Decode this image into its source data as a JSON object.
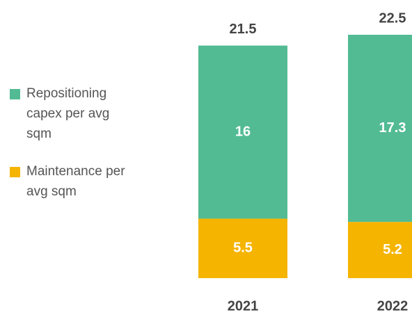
{
  "chart_data": {
    "type": "stacked_bar",
    "categories": [
      "2021",
      "2022"
    ],
    "series": [
      {
        "name": "Maintenance per avg sqm",
        "color": "#f5b400",
        "values": [
          5.5,
          5.2
        ]
      },
      {
        "name": "Repositioning capex per avg sqm",
        "color": "#52bb94",
        "values": [
          16,
          17.3
        ]
      }
    ],
    "totals": [
      21.5,
      22.5
    ],
    "legend": "left"
  }
}
